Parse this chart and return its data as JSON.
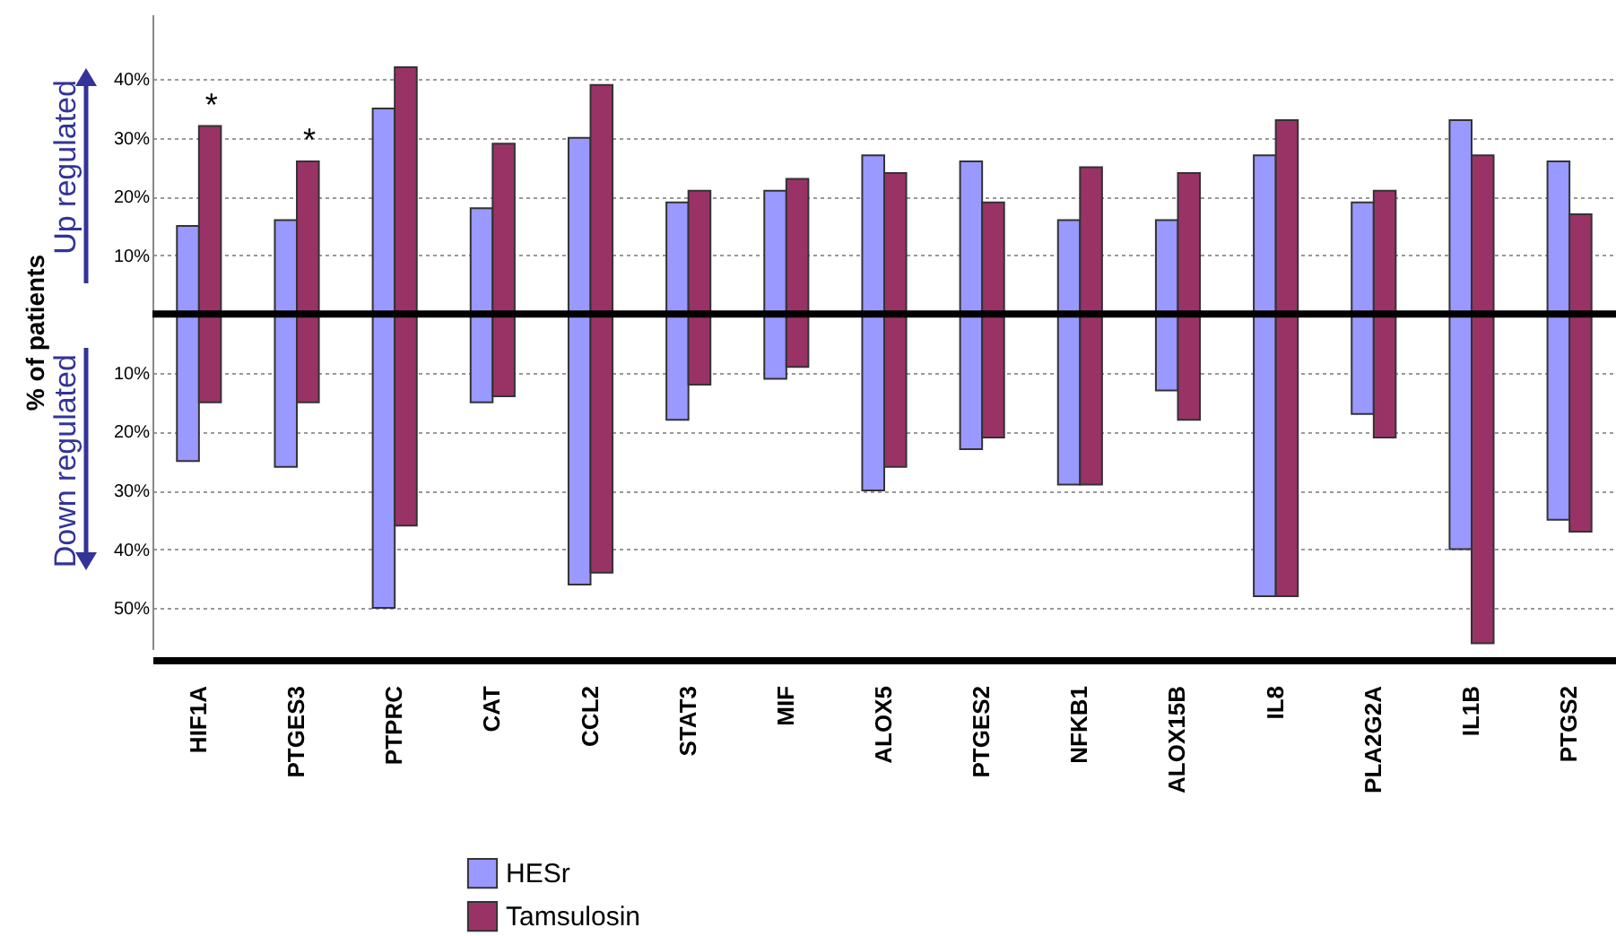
{
  "chart_data": {
    "type": "bar",
    "ylabel": "% of patients",
    "categories": [
      "HIF1A",
      "PTGES3",
      "PTPRC",
      "CAT",
      "CCL2",
      "STAT3",
      "MIF",
      "ALOX5",
      "PTGES2",
      "NFKB1",
      "ALOX15B",
      "IL8",
      "PLA2G2A",
      "IL1B",
      "PTGS2"
    ],
    "series": [
      {
        "name": "HESr",
        "color": "#9999ff",
        "base": [
          -25,
          -26,
          -50,
          -15,
          -46,
          -18,
          -11,
          -30,
          -23,
          -29,
          -13,
          -48,
          -17,
          -40,
          -35
        ],
        "values": [
          40,
          42,
          85,
          33,
          76,
          37,
          32,
          57,
          49,
          45,
          29,
          75,
          36,
          73,
          61
        ]
      },
      {
        "name": "Tamsulosin",
        "color": "#993366",
        "base": [
          -15,
          -15,
          -36,
          -14,
          -44,
          -12,
          -9,
          -26,
          -21,
          -29,
          -18,
          -48,
          -21,
          -56,
          -37
        ],
        "values": [
          47,
          41,
          78,
          43,
          83,
          33,
          32,
          50,
          40,
          54,
          42,
          81,
          42,
          83,
          54
        ]
      }
    ],
    "ylim": [
      -57,
      51
    ],
    "yticks": [
      {
        "value": -50,
        "label": "50%"
      },
      {
        "value": -40,
        "label": "40%"
      },
      {
        "value": -30,
        "label": "30%"
      },
      {
        "value": -20,
        "label": "20%"
      },
      {
        "value": -10,
        "label": "10%"
      },
      {
        "value": 10,
        "label": "10%"
      },
      {
        "value": 20,
        "label": "20%"
      },
      {
        "value": 30,
        "label": "30%"
      },
      {
        "value": 40,
        "label": "40%"
      }
    ],
    "grid": "y",
    "legend": "bottom",
    "ref_lines": [
      {
        "axis": "y",
        "value": 0,
        "color": "#000000"
      }
    ],
    "annotations": [
      "Up regulated",
      "Down regulated",
      {
        "text": "*",
        "x": "HIF1A",
        "y": 32
      },
      {
        "text": "*",
        "x": "PTGES3",
        "y": 26
      }
    ]
  }
}
